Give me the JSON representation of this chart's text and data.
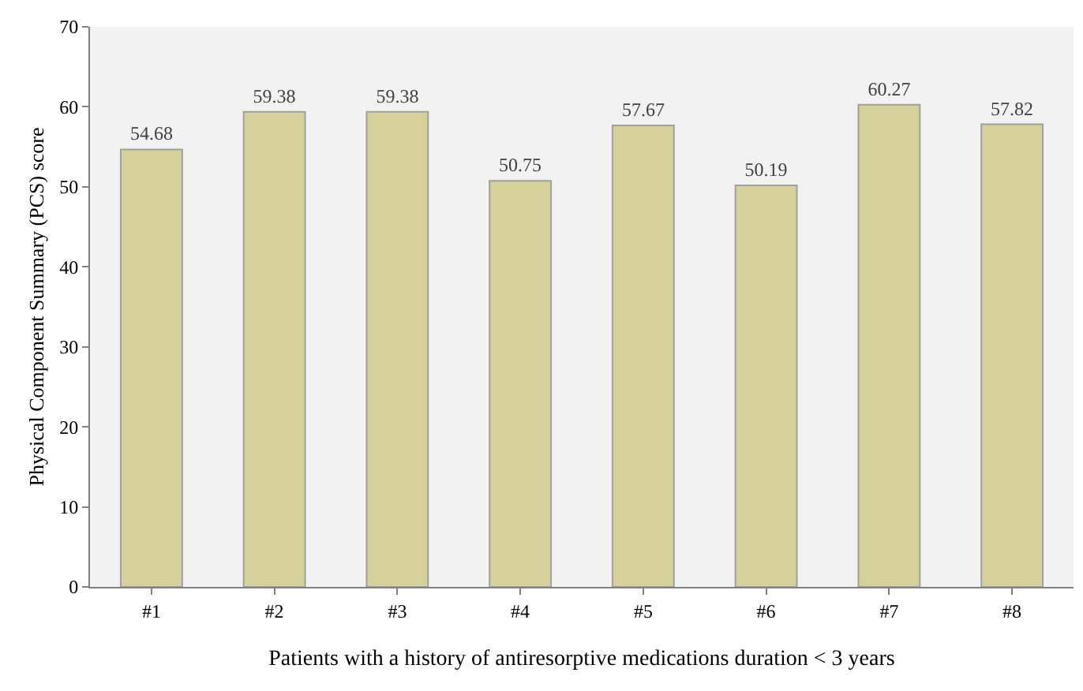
{
  "chart_data": {
    "type": "bar",
    "categories": [
      "#1",
      "#2",
      "#3",
      "#4",
      "#5",
      "#6",
      "#7",
      "#8"
    ],
    "values": [
      54.68,
      59.38,
      59.38,
      50.75,
      57.67,
      50.19,
      60.27,
      57.82
    ],
    "color": "#d6d09a",
    "xlabel": "Patients with a history of antiresorptive medications duration < 3 years",
    "ylabel": "Physical Component Summary (PCS) score",
    "ylim": [
      0,
      70
    ],
    "yticks": [
      0,
      10,
      20,
      30,
      40,
      50,
      60,
      70
    ],
    "data_labels": true,
    "grid": false,
    "legend": false
  }
}
